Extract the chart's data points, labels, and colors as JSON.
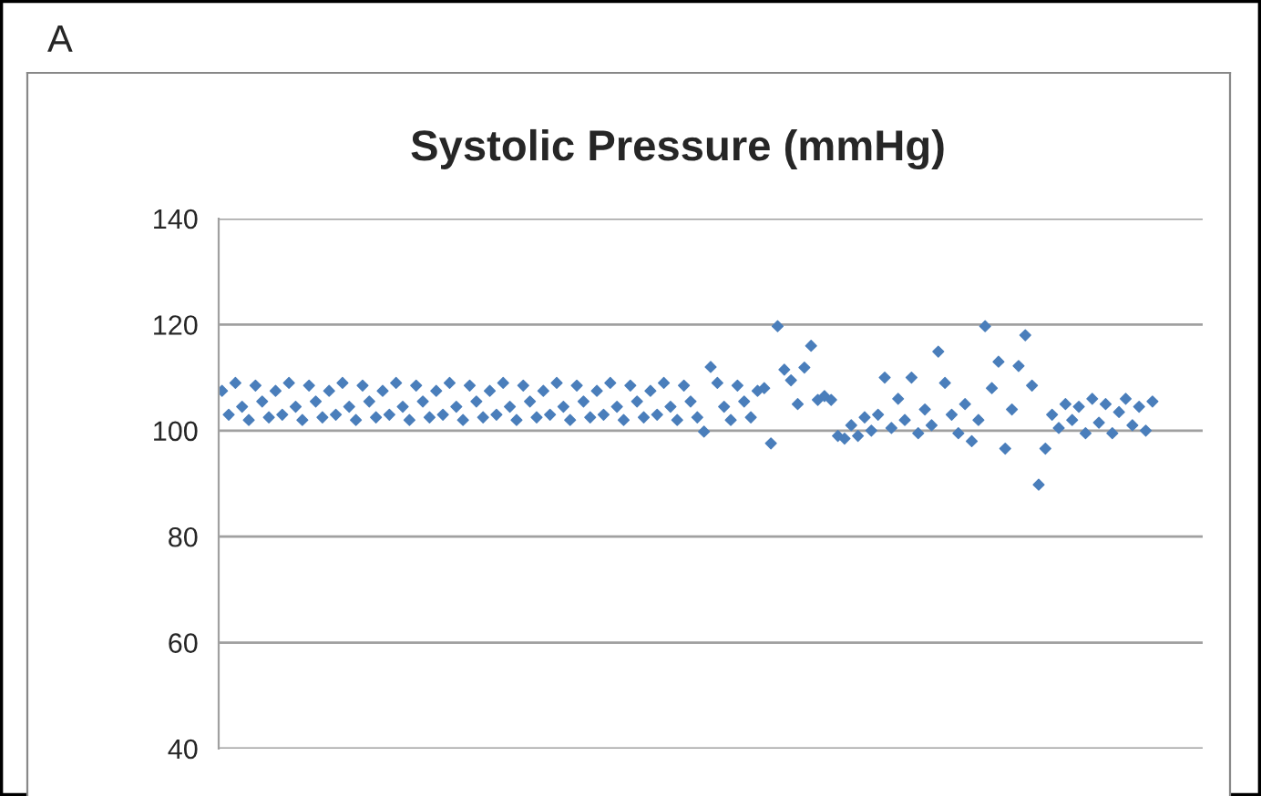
{
  "chart_data": {
    "type": "scatter",
    "title": "Systolic Pressure (mmHg)",
    "annotations": [
      "A"
    ],
    "categories": [
      null,
      null,
      null,
      null,
      null,
      null,
      null,
      null,
      null,
      null,
      null,
      null,
      null,
      null,
      null,
      null,
      null,
      null,
      null,
      null,
      null,
      null,
      null,
      null,
      null,
      null,
      null,
      null,
      null,
      null,
      null,
      null,
      null,
      null,
      null,
      null,
      null,
      null,
      null,
      null,
      null,
      null,
      null,
      null,
      null,
      null,
      null,
      null,
      null,
      null,
      null,
      null,
      null,
      null,
      null,
      null,
      null,
      null,
      null,
      null,
      null,
      null,
      null,
      null,
      null,
      null,
      null,
      null,
      null,
      null,
      null,
      null,
      null,
      null,
      null,
      null,
      null,
      null,
      null,
      null,
      null,
      null,
      null,
      null,
      null,
      null,
      null,
      null,
      null,
      null,
      null,
      null,
      null,
      null,
      null,
      null,
      null,
      null,
      null,
      null,
      null,
      null,
      null,
      null,
      null,
      null,
      null,
      null,
      null,
      null,
      null,
      null,
      null,
      null,
      null,
      null,
      null,
      null,
      null,
      null,
      null,
      null,
      null,
      null,
      null,
      null,
      null,
      null,
      null,
      null,
      null,
      null,
      null,
      null,
      null,
      null,
      null,
      null,
      null,
      null,
      null,
      null,
      null,
      null,
      null,
      null,
      null
    ],
    "series": [
      {
        "color": "#4a7ebb",
        "values": [
          107.5,
          103,
          109,
          104.5,
          102,
          108.5,
          105.5,
          102.5,
          107.5,
          103,
          109,
          104.5,
          102,
          108.5,
          105.5,
          102.5,
          107.5,
          103,
          109,
          104.5,
          102,
          108.5,
          105.5,
          102.5,
          107.5,
          103,
          109,
          104.5,
          102,
          108.5,
          105.5,
          102.5,
          107.5,
          103,
          109,
          104.5,
          102,
          108.5,
          105.5,
          102.5,
          107.5,
          103,
          109,
          104.5,
          102,
          108.5,
          105.5,
          102.5,
          107.5,
          103,
          109,
          104.5,
          102,
          108.5,
          105.5,
          102.5,
          107.5,
          103,
          109,
          104.5,
          102,
          108.5,
          105.5,
          102.5,
          107.5,
          103,
          109,
          104.5,
          102,
          108.5,
          105.5,
          102.5,
          99.8,
          112,
          109,
          104.5,
          102,
          108.5,
          105.5,
          102.5,
          107.5,
          108,
          97.6,
          119.7,
          111.5,
          109.5,
          105,
          111.9,
          116,
          105.8,
          106.5,
          105.8,
          99,
          98.5,
          101,
          99,
          102.5,
          100,
          103,
          110,
          100.5,
          106,
          102,
          110,
          99.5,
          104,
          101,
          114.9,
          109,
          103,
          99.5,
          105,
          98,
          102,
          119.7,
          108,
          113,
          96.6,
          104,
          112.2,
          118,
          108.5,
          89.8,
          96.6,
          103,
          100.5,
          105,
          102,
          104.5,
          99.5,
          106,
          101.5,
          105,
          99.5,
          103.5,
          106,
          101,
          104.5,
          100,
          105.5,
          null,
          null,
          null,
          null,
          null,
          null,
          null
        ]
      }
    ],
    "ylim": [
      40,
      140
    ],
    "yticks": [
      40,
      60,
      80,
      100,
      120,
      140
    ],
    "grid": "y",
    "tick_labels": "y",
    "marker": "diamond"
  }
}
